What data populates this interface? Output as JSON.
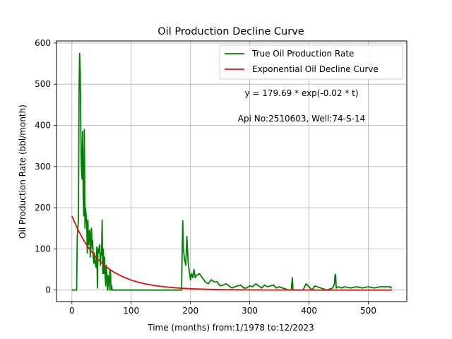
{
  "chart_data": {
    "type": "line",
    "title": "Oil Production Decline Curve",
    "xlabel": "Time (months) from:1/1978 to:12/2023",
    "ylabel": "Oil Production Rate (bbl/month)",
    "xlim": [
      -26,
      565
    ],
    "ylim": [
      -28,
      605
    ],
    "xticks": [
      0,
      100,
      200,
      300,
      400,
      500
    ],
    "yticks": [
      0,
      100,
      200,
      300,
      400,
      500,
      600
    ],
    "grid": true,
    "legend_position": "top-right",
    "annotations": [
      "y = 179.69 * exp(-0.02 * t)",
      "Api No:2510603, Well:74-S-14"
    ],
    "series": [
      {
        "name": "True Oil Production Rate",
        "color": "#008000",
        "x": [
          0,
          8,
          9,
          10,
          11,
          12,
          13,
          14,
          15,
          16,
          17,
          18,
          19,
          20,
          21,
          22,
          23,
          24,
          25,
          26,
          27,
          28,
          29,
          30,
          31,
          32,
          33,
          34,
          35,
          36,
          37,
          38,
          39,
          40,
          41,
          42,
          43,
          44,
          45,
          46,
          47,
          48,
          49,
          50,
          51,
          52,
          53,
          54,
          55,
          56,
          57,
          58,
          59,
          60,
          61,
          62,
          63,
          64,
          65,
          66,
          67,
          68,
          69,
          70,
          71,
          72,
          73,
          74,
          75,
          76,
          77,
          78,
          79,
          80,
          81,
          82,
          83,
          84,
          85,
          100,
          150,
          185,
          186,
          187,
          188,
          190,
          192,
          194,
          196,
          198,
          200,
          202,
          204,
          206,
          208,
          210,
          215,
          220,
          225,
          230,
          235,
          240,
          245,
          250,
          255,
          260,
          265,
          270,
          275,
          280,
          285,
          290,
          295,
          300,
          305,
          310,
          315,
          320,
          325,
          330,
          335,
          340,
          345,
          350,
          355,
          360,
          365,
          370,
          372,
          373,
          374,
          375,
          380,
          385,
          390,
          395,
          400,
          405,
          410,
          420,
          430,
          440,
          443,
          444,
          445,
          446,
          450,
          455,
          460,
          470,
          480,
          490,
          500,
          510,
          520,
          530,
          535,
          537,
          538,
          539
        ],
        "y": [
          0,
          0,
          130,
          150,
          170,
          480,
          575,
          530,
          390,
          300,
          270,
          385,
          230,
          180,
          390,
          150,
          200,
          180,
          160,
          90,
          170,
          110,
          140,
          145,
          80,
          130,
          150,
          100,
          120,
          80,
          65,
          90,
          70,
          60,
          55,
          105,
          5,
          100,
          90,
          105,
          110,
          60,
          90,
          85,
          170,
          40,
          100,
          40,
          80,
          35,
          10,
          60,
          40,
          0,
          35,
          25,
          0,
          50,
          45,
          0,
          10,
          0,
          0,
          0,
          0,
          0,
          0,
          0,
          0,
          0,
          0,
          0,
          0,
          0,
          0,
          0,
          0,
          0,
          0,
          0,
          0,
          0,
          90,
          168,
          100,
          75,
          60,
          130,
          70,
          45,
          25,
          40,
          30,
          50,
          30,
          35,
          40,
          30,
          20,
          15,
          25,
          20,
          20,
          10,
          12,
          15,
          10,
          5,
          8,
          10,
          12,
          5,
          5,
          10,
          8,
          15,
          10,
          5,
          12,
          8,
          10,
          12,
          5,
          8,
          5,
          3,
          0,
          0,
          30,
          0,
          0,
          0,
          0,
          0,
          0,
          15,
          8,
          0,
          10,
          5,
          0,
          5,
          15,
          38,
          35,
          5,
          8,
          5,
          8,
          5,
          8,
          5,
          8,
          5,
          8,
          8,
          8,
          8,
          5,
          8
        ]
      },
      {
        "name": "Exponential Oil Decline Curve",
        "color": "#dd1111",
        "x": [
          0,
          10,
          20,
          30,
          40,
          50,
          60,
          70,
          80,
          90,
          100,
          110,
          120,
          130,
          140,
          150,
          160,
          170,
          180,
          190,
          200,
          210,
          220,
          230,
          240,
          250,
          260,
          270,
          280,
          290,
          300,
          310,
          320,
          330,
          340,
          350,
          360,
          370,
          380,
          390,
          400,
          410,
          420,
          430,
          440,
          450,
          460,
          470,
          480,
          490,
          500,
          510,
          520,
          530,
          540
        ],
        "y": [
          179.7,
          147.1,
          120.4,
          98.6,
          80.7,
          66.1,
          54.1,
          44.3,
          36.3,
          29.7,
          24.3,
          19.9,
          16.3,
          13.3,
          10.9,
          8.9,
          7.3,
          6.0,
          4.9,
          4.0,
          3.3,
          2.7,
          2.2,
          1.8,
          1.5,
          1.2,
          1.0,
          0.8,
          0.7,
          0.5,
          0.4,
          0.4,
          0.3,
          0.2,
          0.2,
          0.2,
          0.1,
          0.1,
          0.1,
          0.1,
          0.1,
          0.0,
          0.0,
          0.0,
          0.0,
          0.0,
          0.0,
          0.0,
          0.0,
          0.0,
          0.0,
          0.0,
          0.0,
          0.0,
          0.0
        ]
      }
    ]
  }
}
